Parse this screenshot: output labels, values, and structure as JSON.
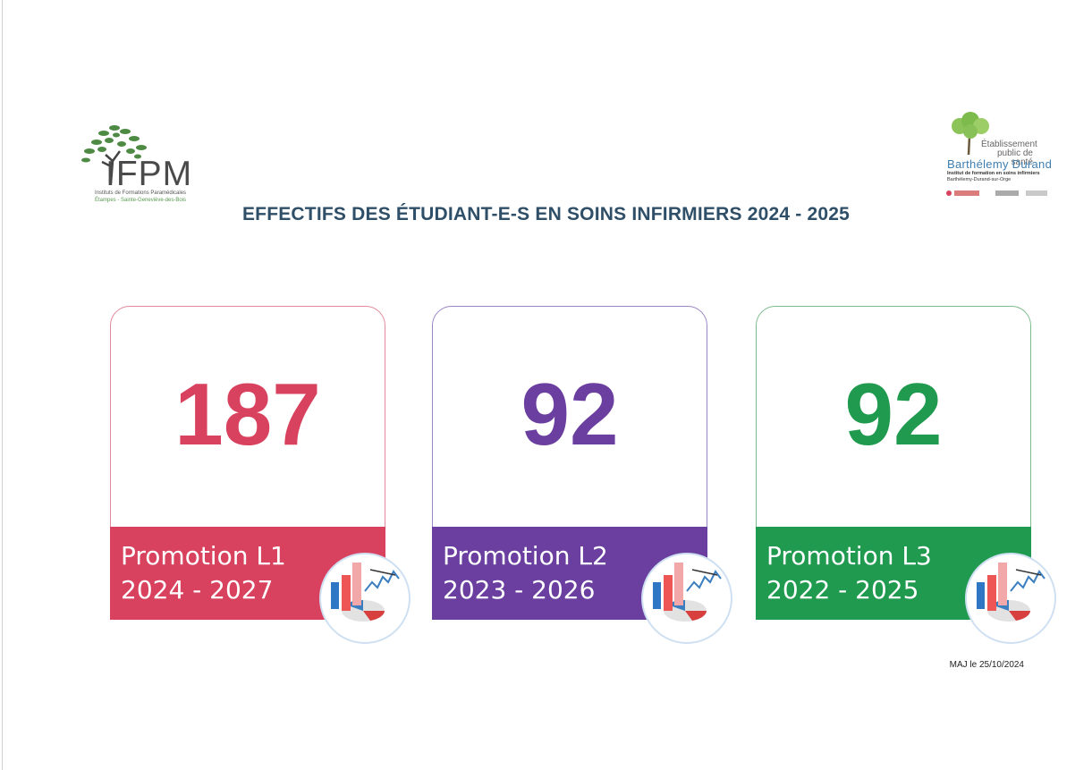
{
  "title": "EFFECTIFS DES ÉTUDIANT-E-S EN SOINS INFIRMIERS 2024 - 2025",
  "logo_left": {
    "name": "IFPM",
    "subtitle": "Instituts de Formations Paramédicales",
    "locations": "Étampes - Sainte-Geneviève-des-Bois"
  },
  "logo_right": {
    "label_line1": "Établissement",
    "label_line2": "public de santé",
    "name": "Barthélemy Durand",
    "institute": "Institut de formation en soins infirmiers",
    "city": "Barthélemy-Durand-sur-Orge"
  },
  "cards": [
    {
      "count": "187",
      "promotion": "Promotion L1",
      "years": "2024 - 2027",
      "color": "#d8425e",
      "border": "#e08a9a"
    },
    {
      "count": "92",
      "promotion": "Promotion L2",
      "years": "2023 - 2026",
      "color": "#6a3fa0",
      "border": "#9a86c2"
    },
    {
      "count": "92",
      "promotion": "Promotion L3",
      "years": "2022 - 2025",
      "color": "#1f9a4e",
      "border": "#7dbb8c"
    }
  ],
  "updated": "MAJ le 25/10/2024"
}
